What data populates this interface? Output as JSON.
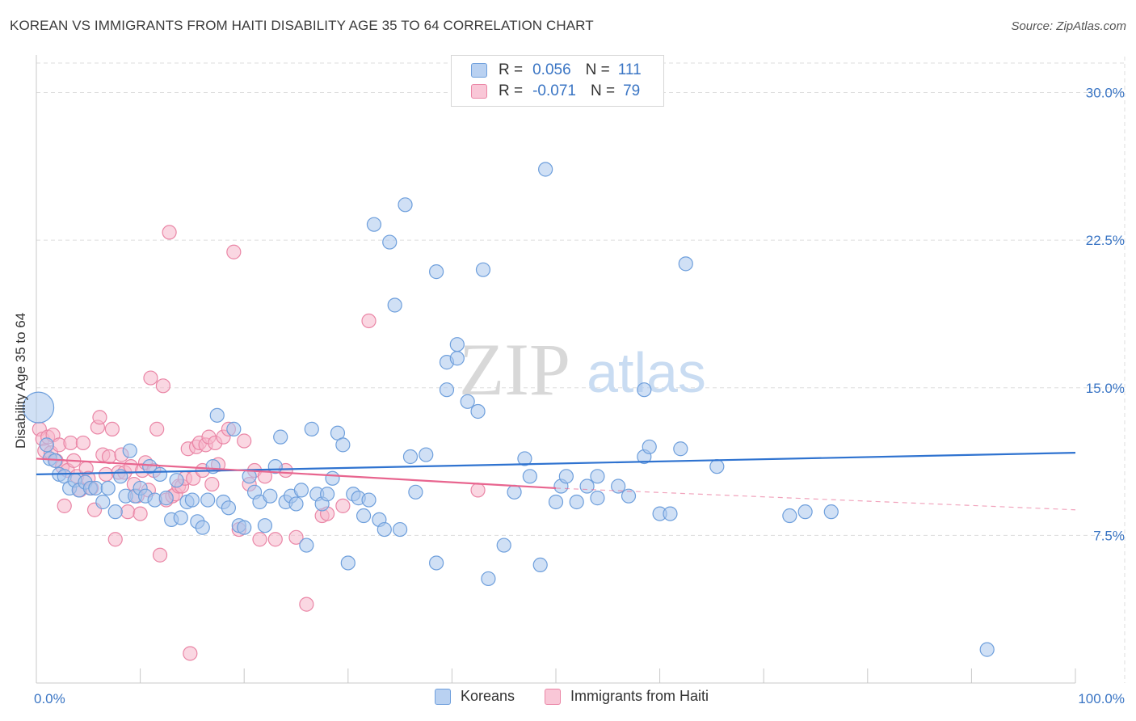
{
  "header": {
    "title": "KOREAN VS IMMIGRANTS FROM HAITI DISABILITY AGE 35 TO 64 CORRELATION CHART",
    "source": "Source: ZipAtlas.com"
  },
  "watermark": {
    "zip": "ZIP",
    "atlas": "atlas"
  },
  "legend": {
    "koreans": {
      "r_label": "R =",
      "r_value": "0.056",
      "n_label": "N =",
      "n_value": "111"
    },
    "haiti": {
      "r_label": "R =",
      "r_value": "-0.071",
      "n_label": "N =",
      "n_value": "79"
    }
  },
  "bottom_legend": {
    "koreans": "Koreans",
    "haiti": "Immigrants from Haiti"
  },
  "colors": {
    "korean_fill": "#a9c6ec",
    "korean_stroke": "#6e9fdc",
    "korean_line": "#2f73d0",
    "haiti_fill": "#f6b6cb",
    "haiti_stroke": "#ea86a6",
    "haiti_line": "#e8658f",
    "tick_text": "#3a75c4",
    "grid": "#dddddd"
  },
  "chart_data": {
    "type": "scatter",
    "title": "KOREAN VS IMMIGRANTS FROM HAITI DISABILITY AGE 35 TO 64 CORRELATION CHART",
    "xlabel": "",
    "ylabel": "Disability Age 35 to 64",
    "xlim": [
      0,
      100
    ],
    "ylim": [
      0,
      31.5
    ],
    "x_tick_labels": [
      "0.0%",
      "100.0%"
    ],
    "y_ticks": [
      7.5,
      15.0,
      22.5,
      30.0
    ],
    "y_tick_labels": [
      "7.5%",
      "15.0%",
      "22.5%",
      "30.0%"
    ],
    "grid": true,
    "legend_position": "top-center",
    "series": [
      {
        "name": "Koreans",
        "r": 0.056,
        "n": 111,
        "trend": {
          "x": [
            0,
            100
          ],
          "y": [
            10.6,
            11.7
          ]
        },
        "points": [
          [
            0.2,
            14.0,
            "big"
          ],
          [
            1.0,
            12.1
          ],
          [
            1.3,
            11.4
          ],
          [
            1.8,
            11.3
          ],
          [
            2.2,
            10.6
          ],
          [
            2.7,
            10.5
          ],
          [
            3.2,
            9.9
          ],
          [
            3.7,
            10.3
          ],
          [
            4.1,
            9.8
          ],
          [
            4.7,
            10.2
          ],
          [
            5.2,
            9.9
          ],
          [
            5.7,
            9.9
          ],
          [
            6.4,
            9.2
          ],
          [
            6.9,
            9.9
          ],
          [
            7.6,
            8.7
          ],
          [
            8.1,
            10.5
          ],
          [
            8.6,
            9.5
          ],
          [
            9.0,
            11.8
          ],
          [
            9.5,
            9.5
          ],
          [
            10.0,
            9.9
          ],
          [
            10.5,
            9.5
          ],
          [
            10.9,
            11.0
          ],
          [
            11.4,
            9.3
          ],
          [
            11.9,
            10.6
          ],
          [
            12.5,
            9.4
          ],
          [
            13.0,
            8.3
          ],
          [
            13.5,
            10.3
          ],
          [
            13.9,
            8.4
          ],
          [
            14.5,
            9.2
          ],
          [
            15.0,
            9.3
          ],
          [
            15.5,
            8.2
          ],
          [
            16.0,
            7.9
          ],
          [
            16.5,
            9.3
          ],
          [
            17.0,
            11.0
          ],
          [
            17.4,
            13.6
          ],
          [
            18.0,
            9.2
          ],
          [
            18.5,
            8.9
          ],
          [
            19.0,
            12.9
          ],
          [
            19.5,
            8.0
          ],
          [
            20.0,
            7.9
          ],
          [
            20.5,
            10.5
          ],
          [
            21.0,
            9.7
          ],
          [
            21.5,
            9.2
          ],
          [
            22.0,
            8.0
          ],
          [
            22.5,
            9.5
          ],
          [
            23.0,
            11.0
          ],
          [
            23.5,
            12.5
          ],
          [
            24.0,
            9.2
          ],
          [
            24.5,
            9.5
          ],
          [
            25.0,
            9.1
          ],
          [
            25.5,
            9.8
          ],
          [
            26.0,
            7.0
          ],
          [
            26.5,
            12.9
          ],
          [
            27.0,
            9.6
          ],
          [
            27.5,
            9.1
          ],
          [
            28.0,
            9.6
          ],
          [
            28.5,
            10.4
          ],
          [
            29.0,
            12.7
          ],
          [
            29.5,
            12.1
          ],
          [
            30.0,
            6.1
          ],
          [
            30.5,
            9.6
          ],
          [
            31.0,
            9.4
          ],
          [
            31.5,
            8.5
          ],
          [
            32.0,
            9.3
          ],
          [
            32.5,
            23.3
          ],
          [
            33.0,
            8.3
          ],
          [
            33.5,
            7.8
          ],
          [
            34.0,
            22.4
          ],
          [
            34.5,
            19.2
          ],
          [
            35.0,
            7.8
          ],
          [
            35.5,
            24.3
          ],
          [
            36.0,
            11.5
          ],
          [
            36.5,
            9.7
          ],
          [
            37.5,
            11.6
          ],
          [
            38.5,
            20.9
          ],
          [
            38.5,
            6.1
          ],
          [
            39.5,
            16.3
          ],
          [
            39.5,
            14.9
          ],
          [
            40.5,
            16.5
          ],
          [
            40.5,
            17.2
          ],
          [
            41.5,
            14.3
          ],
          [
            42.5,
            13.8
          ],
          [
            43.0,
            21.0
          ],
          [
            43.5,
            5.3
          ],
          [
            45.0,
            7.0
          ],
          [
            46.0,
            9.7
          ],
          [
            47.0,
            11.4
          ],
          [
            47.5,
            10.5
          ],
          [
            48.5,
            6.0
          ],
          [
            49.0,
            26.1
          ],
          [
            50.0,
            9.2
          ],
          [
            50.5,
            10.0
          ],
          [
            51.0,
            10.5
          ],
          [
            52.0,
            9.2
          ],
          [
            53.0,
            10.0
          ],
          [
            54.0,
            9.4
          ],
          [
            54.0,
            10.5
          ],
          [
            56.0,
            10.0
          ],
          [
            57.0,
            9.5
          ],
          [
            58.5,
            14.9
          ],
          [
            58.5,
            11.5
          ],
          [
            59.0,
            12.0
          ],
          [
            60.0,
            8.6
          ],
          [
            61.0,
            8.6
          ],
          [
            62.0,
            11.9
          ],
          [
            62.5,
            21.3
          ],
          [
            65.5,
            11.0
          ],
          [
            72.5,
            8.5
          ],
          [
            74.0,
            8.7
          ],
          [
            76.5,
            8.7
          ],
          [
            91.5,
            1.7
          ]
        ]
      },
      {
        "name": "Immigrants from Haiti",
        "r": -0.071,
        "n": 79,
        "trend": {
          "x": [
            0,
            50
          ],
          "y": [
            11.4,
            9.9
          ]
        },
        "trend_dashed": {
          "x": [
            50,
            100
          ],
          "y": [
            9.9,
            8.8
          ]
        },
        "points": [
          [
            0.3,
            12.9
          ],
          [
            0.6,
            12.4
          ],
          [
            0.8,
            11.8
          ],
          [
            1.1,
            12.5
          ],
          [
            1.4,
            11.7
          ],
          [
            1.6,
            12.6
          ],
          [
            1.9,
            11.3
          ],
          [
            2.2,
            12.1
          ],
          [
            2.5,
            11.0
          ],
          [
            2.7,
            9.0
          ],
          [
            3.0,
            10.8
          ],
          [
            3.3,
            12.2
          ],
          [
            3.6,
            11.3
          ],
          [
            3.9,
            10.5
          ],
          [
            4.2,
            9.8
          ],
          [
            4.5,
            12.2
          ],
          [
            4.8,
            10.9
          ],
          [
            5.0,
            10.4
          ],
          [
            5.3,
            9.9
          ],
          [
            5.6,
            8.8
          ],
          [
            5.9,
            13.0
          ],
          [
            6.1,
            13.5
          ],
          [
            6.4,
            11.6
          ],
          [
            6.7,
            10.6
          ],
          [
            7.0,
            11.5
          ],
          [
            7.3,
            12.9
          ],
          [
            7.6,
            7.3
          ],
          [
            7.9,
            10.7
          ],
          [
            8.2,
            11.6
          ],
          [
            8.5,
            10.7
          ],
          [
            8.8,
            8.7
          ],
          [
            9.1,
            11.0
          ],
          [
            9.4,
            10.1
          ],
          [
            9.7,
            9.5
          ],
          [
            10.0,
            8.6
          ],
          [
            10.2,
            10.8
          ],
          [
            10.5,
            11.2
          ],
          [
            10.8,
            9.8
          ],
          [
            11.0,
            15.5
          ],
          [
            11.3,
            10.8
          ],
          [
            11.6,
            12.9
          ],
          [
            11.9,
            6.5
          ],
          [
            12.2,
            15.1
          ],
          [
            12.5,
            9.3
          ],
          [
            12.8,
            22.9
          ],
          [
            13.1,
            9.5
          ],
          [
            13.4,
            9.6
          ],
          [
            13.7,
            10.0
          ],
          [
            14.0,
            10.0
          ],
          [
            14.3,
            10.4
          ],
          [
            14.6,
            11.9
          ],
          [
            14.8,
            1.5
          ],
          [
            15.1,
            10.4
          ],
          [
            15.4,
            12.0
          ],
          [
            15.7,
            12.2
          ],
          [
            16.0,
            10.8
          ],
          [
            16.3,
            12.1
          ],
          [
            16.6,
            12.5
          ],
          [
            16.9,
            10.1
          ],
          [
            17.2,
            12.2
          ],
          [
            17.5,
            11.1
          ],
          [
            18.0,
            12.5
          ],
          [
            18.5,
            12.9
          ],
          [
            19.0,
            21.9
          ],
          [
            19.5,
            7.8
          ],
          [
            20.0,
            12.3
          ],
          [
            20.5,
            10.1
          ],
          [
            21.0,
            10.8
          ],
          [
            21.5,
            7.3
          ],
          [
            22.0,
            10.5
          ],
          [
            23.0,
            7.3
          ],
          [
            24.0,
            10.8
          ],
          [
            25.0,
            7.4
          ],
          [
            26.0,
            4.0
          ],
          [
            27.5,
            8.5
          ],
          [
            28.0,
            8.6
          ],
          [
            29.5,
            9.0
          ],
          [
            32.0,
            18.4
          ],
          [
            42.5,
            9.8
          ]
        ]
      }
    ]
  }
}
